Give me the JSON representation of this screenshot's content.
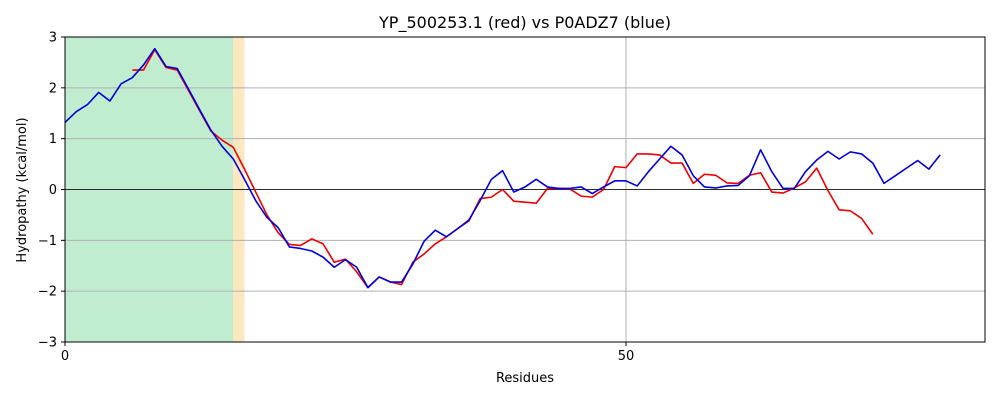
{
  "chart_data": {
    "type": "line",
    "title": "YP_500253.1 (red) vs P0ADZ7 (blue)",
    "xlabel": "Residues",
    "ylabel": "Hydropathy (kcal/mol)",
    "xlim": [
      0,
      82
    ],
    "ylim": [
      -3,
      3
    ],
    "x_ticks": [
      0,
      50
    ],
    "y_ticks": [
      -3,
      -2,
      -1,
      0,
      1,
      2,
      3
    ],
    "grid": true,
    "zero_line": true,
    "regions": [
      {
        "name": "",
        "x_start": 0,
        "x_end": 15,
        "color": "#c0ecd0"
      },
      {
        "name": "",
        "x_start": 15,
        "x_end": 16,
        "color": "#fde7be"
      }
    ],
    "series": [
      {
        "name": "YP_500253.1",
        "color": "#ee0000",
        "x": [
          6,
          7,
          8,
          9,
          10,
          11,
          12,
          13,
          14,
          15,
          16,
          17,
          18,
          19,
          20,
          21,
          22,
          23,
          24,
          25,
          26,
          27,
          28,
          29,
          30,
          31,
          32,
          33,
          34,
          35,
          36,
          37,
          38,
          39,
          40,
          41,
          42,
          43,
          44,
          45,
          46,
          47,
          48,
          49,
          50,
          51,
          52,
          53,
          54,
          55,
          56,
          57,
          58,
          59,
          60,
          61,
          62,
          63,
          64,
          65,
          66,
          67,
          68,
          69,
          70,
          71,
          72
        ],
        "y": [
          2.35,
          2.35,
          2.75,
          2.4,
          2.35,
          1.95,
          1.55,
          1.15,
          0.97,
          0.83,
          0.4,
          -0.05,
          -0.5,
          -0.85,
          -1.08,
          -1.1,
          -0.97,
          -1.07,
          -1.43,
          -1.37,
          -1.62,
          -1.93,
          -1.72,
          -1.82,
          -1.87,
          -1.43,
          -1.27,
          -1.07,
          -0.93,
          -0.77,
          -0.62,
          -0.18,
          -0.15,
          0.0,
          -0.23,
          -0.25,
          -0.27,
          0.02,
          0.02,
          0.01,
          -0.13,
          -0.15,
          0.0,
          0.45,
          0.43,
          0.7,
          0.7,
          0.68,
          0.52,
          0.52,
          0.12,
          0.3,
          0.28,
          0.13,
          0.12,
          0.28,
          0.33,
          -0.05,
          -0.07,
          0.03,
          0.15,
          0.42,
          -0.02,
          -0.4,
          -0.42,
          -0.57,
          -0.88
        ]
      },
      {
        "name": "P0ADZ7",
        "color": "#0000dd",
        "x": [
          0,
          1,
          2,
          3,
          4,
          5,
          6,
          7,
          8,
          9,
          10,
          11,
          12,
          13,
          14,
          15,
          16,
          17,
          18,
          19,
          20,
          21,
          22,
          23,
          24,
          25,
          26,
          27,
          28,
          29,
          30,
          31,
          32,
          33,
          34,
          35,
          36,
          37,
          38,
          39,
          40,
          41,
          42,
          43,
          44,
          45,
          46,
          47,
          48,
          49,
          50,
          51,
          52,
          53,
          54,
          55,
          56,
          57,
          58,
          59,
          60,
          61,
          62,
          63,
          64,
          65,
          66,
          67,
          68,
          69,
          70,
          71,
          72,
          73,
          74,
          75,
          76,
          77,
          78
        ],
        "y": [
          1.32,
          1.53,
          1.67,
          1.91,
          1.74,
          2.08,
          2.2,
          2.45,
          2.77,
          2.42,
          2.38,
          1.98,
          1.57,
          1.17,
          0.85,
          0.6,
          0.2,
          -0.22,
          -0.55,
          -0.75,
          -1.13,
          -1.16,
          -1.21,
          -1.33,
          -1.53,
          -1.38,
          -1.53,
          -1.93,
          -1.72,
          -1.82,
          -1.82,
          -1.47,
          -1.02,
          -0.8,
          -0.93,
          -0.77,
          -0.6,
          -0.22,
          0.2,
          0.37,
          -0.05,
          0.05,
          0.2,
          0.05,
          0.02,
          0.02,
          0.05,
          -0.08,
          0.05,
          0.17,
          0.17,
          0.07,
          0.35,
          0.6,
          0.85,
          0.68,
          0.27,
          0.05,
          0.03,
          0.07,
          0.08,
          0.27,
          0.78,
          0.35,
          0.02,
          0.02,
          0.35,
          0.58,
          0.75,
          0.6,
          0.74,
          0.7,
          0.52,
          0.12,
          0.27,
          0.42,
          0.57,
          0.4,
          0.68
        ]
      }
    ]
  }
}
